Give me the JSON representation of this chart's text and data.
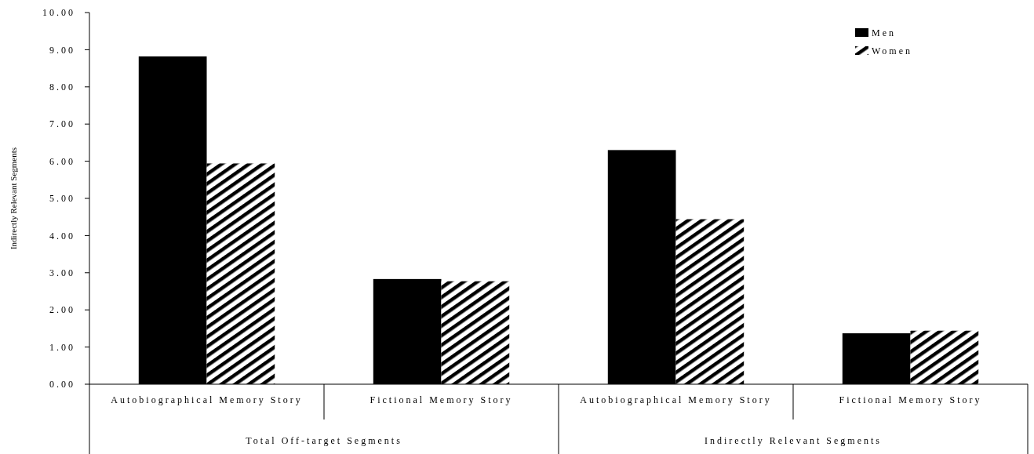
{
  "chart_data": {
    "type": "bar",
    "ylabel": "Indirectly Relevant Segments",
    "categories": [
      "Autobiographical Memory Story",
      "Fictional Memory Story",
      "Autobiographical Memory Story",
      "Fictional Memory Story"
    ],
    "series": [
      {
        "name": "Men",
        "color": "#000000",
        "values": [
          8.82,
          2.83,
          6.3,
          1.37
        ]
      },
      {
        "name": "Women",
        "color": "#000000",
        "values": [
          5.94,
          2.77,
          4.44,
          1.44
        ]
      }
    ],
    "annotations": [
      "Total Off-target Segments",
      "Indirectly Relevant Segments"
    ],
    "ylim": [
      0,
      10
    ],
    "yticks": [
      {
        "value": 0,
        "label": "0.00"
      },
      {
        "value": 1,
        "label": "1.00"
      },
      {
        "value": 2,
        "label": "2.00"
      },
      {
        "value": 3,
        "label": "3.00"
      },
      {
        "value": 4,
        "label": "4.00"
      },
      {
        "value": 5,
        "label": "5.00"
      },
      {
        "value": 6,
        "label": "6.00"
      },
      {
        "value": 7,
        "label": "7.00"
      },
      {
        "value": 8,
        "label": "8.00"
      },
      {
        "value": 9,
        "label": "9.00"
      },
      {
        "value": 10,
        "label": "10.00"
      }
    ],
    "legend": "top right",
    "grid": false
  }
}
